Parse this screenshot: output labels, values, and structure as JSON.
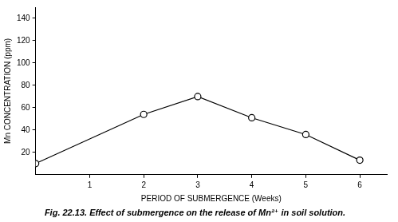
{
  "chart_data": {
    "type": "line",
    "title": "Fig. 22.13. Effect of submergence on the release of Mn²⁺ in soil solution.",
    "x_label": "PERIOD OF SUBMERGENCE (Weeks)",
    "y_label": "Mn CONCENTRATION (ppm)",
    "x": [
      0,
      2,
      3,
      4,
      5,
      6
    ],
    "values": [
      10,
      54,
      70,
      51,
      36,
      13
    ],
    "color": "#000000",
    "marker": "circle",
    "line_style": "solid",
    "xlim": [
      0,
      6.5
    ],
    "xticks": [
      1,
      2,
      3,
      4,
      5,
      6
    ],
    "ylim": [
      0,
      150
    ],
    "yticks": [
      20,
      40,
      60,
      80,
      100,
      120,
      140
    ],
    "grid": false
  }
}
